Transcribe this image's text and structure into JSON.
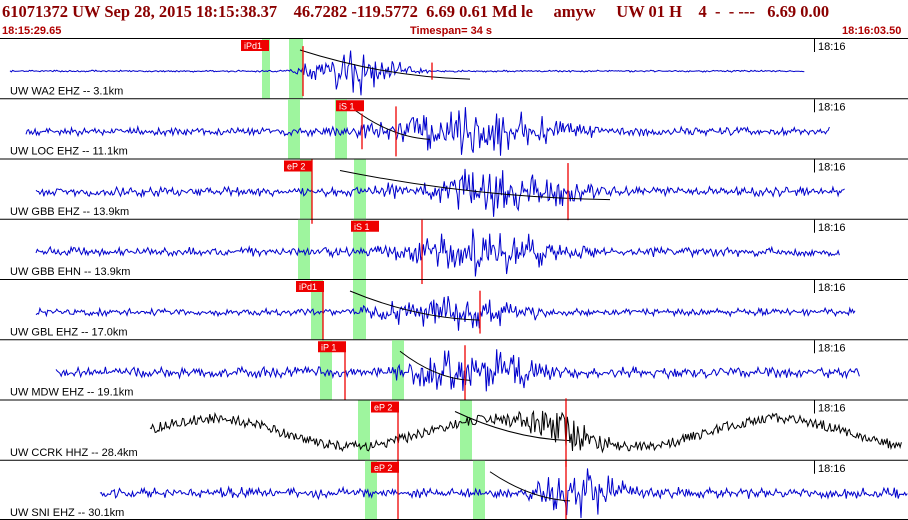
{
  "header": {
    "title": "61071372 UW Sep 28, 2015 18:15:38.37    46.7282 -119.5772  6.69 0.61 Md le     amyw     UW 01 H    4  -  - ---   6.69 0.00",
    "start_time": "18:15:29.65",
    "timespan": "Timespan=  34 s",
    "end_time": "18:16:03.50"
  },
  "colors": {
    "title": "#8b0000",
    "subrow": "#b00000",
    "trace": "#0000cc",
    "trace_alt": "#000000",
    "pick_box": "#ee0000",
    "pick_window": "#9ef59e",
    "pick_line": "#ee0000"
  },
  "traces": [
    {
      "label": "UW WA2 EHZ -- 3.1km",
      "time": "18:16",
      "pick": "iPd1",
      "color": "blue"
    },
    {
      "label": "UW LOC EHZ -- 11.1km",
      "time": "18:16",
      "pick": "iS 1",
      "color": "blue"
    },
    {
      "label": "UW GBB EHZ -- 13.9km",
      "time": "18:16",
      "pick": "eP 2",
      "color": "blue"
    },
    {
      "label": "UW GBB EHN -- 13.9km",
      "time": "18:16",
      "pick": "iS 1",
      "color": "blue"
    },
    {
      "label": "UW GBL EHZ -- 17.0km",
      "time": "18:16",
      "pick": "iPd1",
      "color": "blue"
    },
    {
      "label": "UW MDW EHZ -- 19.1km",
      "time": "18:16",
      "pick": "iP 1",
      "color": "blue"
    },
    {
      "label": "UW CCRK HHZ -- 28.4km",
      "time": "18:16",
      "pick": "eP 2",
      "color": "black"
    },
    {
      "label": "UW SNI EHZ -- 30.1km",
      "time": "18:16",
      "pick": "eP 2",
      "color": "blue"
    }
  ]
}
